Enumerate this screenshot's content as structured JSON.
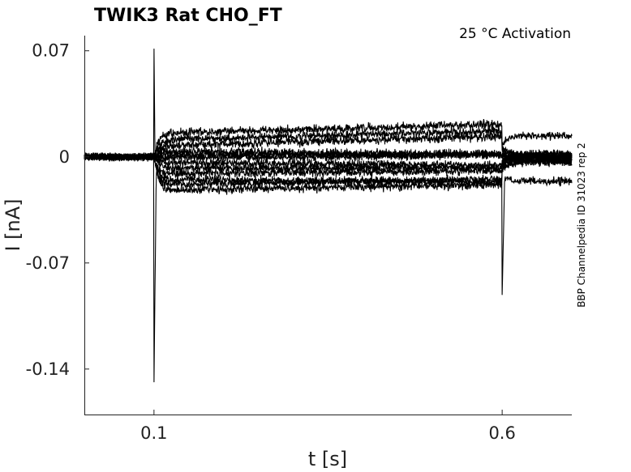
{
  "chart_data": {
    "type": "line",
    "title": "TWIK3  Rat  CHO_FT",
    "annotation": "25 °C  Activation",
    "side_note": "BBP Channelpedia ID 31023 rep 2",
    "xlabel": "t [s]",
    "ylabel": "I [nA]",
    "xlim": [
      0.0,
      0.7
    ],
    "ylim": [
      -0.17,
      0.08
    ],
    "xticks": [
      0.1,
      0.6
    ],
    "xtick_labels": [
      "0.1",
      "0.6"
    ],
    "yticks": [
      0.07,
      0,
      -0.07,
      -0.14
    ],
    "ytick_labels": [
      "0.07",
      "0",
      "-0.07",
      "-0.14"
    ],
    "grid": false,
    "stimulus_on": 0.1,
    "stimulus_off": 0.6,
    "series_count": 12,
    "series_levels_during_step": [
      0.0155,
      0.0111,
      0.0074,
      0.0037,
      0.0015,
      -0.0007,
      -0.0037,
      -0.0074,
      -0.0111,
      -0.0148,
      -0.0185,
      -0.0222
    ],
    "onset_transient_peak": 0.0714,
    "onset_transient_trough": -0.1487,
    "offset_transient_trough": -0.0911
  }
}
